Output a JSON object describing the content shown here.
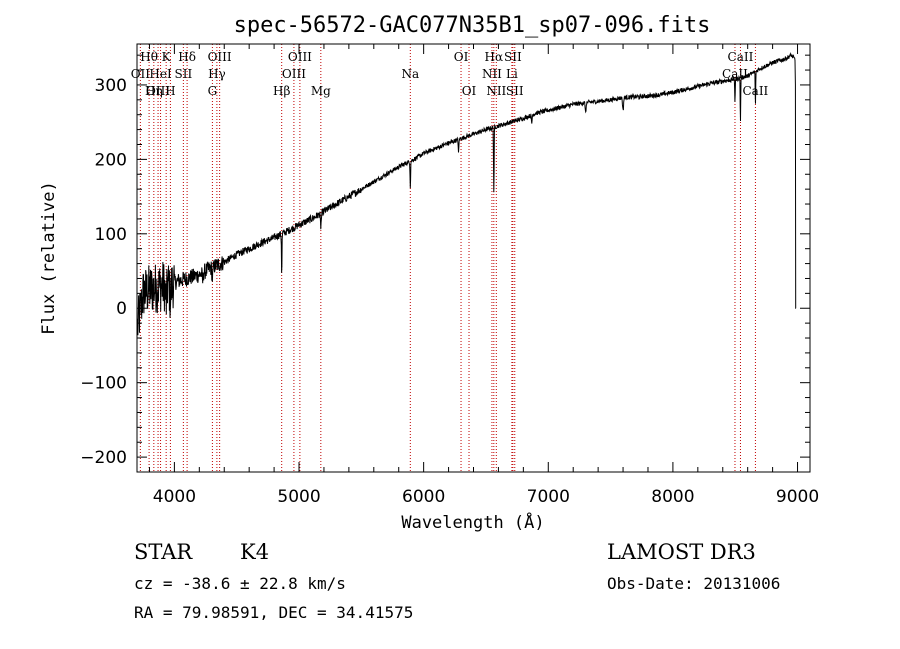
{
  "chart_data": {
    "type": "line",
    "title": "spec-56572-GAC077N35B1_sp07-096.fits",
    "xlabel": "Wavelength (Å)",
    "ylabel": "Flux (relative)",
    "xlim": [
      3700,
      9100
    ],
    "ylim": [
      -220,
      355
    ],
    "xticks": [
      4000,
      5000,
      6000,
      7000,
      8000,
      9000
    ],
    "yticks": [
      -200,
      -100,
      0,
      100,
      200,
      300
    ],
    "xminor_step": 200,
    "yminor_step": 20,
    "spectral_lines": [
      {
        "label": "OII",
        "wavelength": 3727,
        "row": 2
      },
      {
        "label": "Hθ",
        "wavelength": 3797,
        "row": 1
      },
      {
        "label": "OIII",
        "wavelength": 3869,
        "row": 3
      },
      {
        "label": "HeI",
        "wavelength": 3889,
        "row": 2
      },
      {
        "label": "Hη",
        "wavelength": 3835,
        "row": 3
      },
      {
        "label": "K",
        "wavelength": 3934,
        "row": 1
      },
      {
        "label": "H",
        "wavelength": 3968,
        "row": 3
      },
      {
        "label": "SII",
        "wavelength": 4072,
        "row": 2
      },
      {
        "label": "Hδ",
        "wavelength": 4102,
        "row": 1
      },
      {
        "label": "G",
        "wavelength": 4305,
        "row": 3
      },
      {
        "label": "Hγ",
        "wavelength": 4341,
        "row": 2
      },
      {
        "label": "OIII",
        "wavelength": 4363,
        "row": 1
      },
      {
        "label": "Hβ",
        "wavelength": 4861,
        "row": 3
      },
      {
        "label": "OIII",
        "wavelength": 4959,
        "row": 2
      },
      {
        "label": "OIII",
        "wavelength": 5007,
        "row": 1
      },
      {
        "label": "Mg",
        "wavelength": 5175,
        "row": 3
      },
      {
        "label": "Na",
        "wavelength": 5893,
        "row": 2
      },
      {
        "label": "OI",
        "wavelength": 6300,
        "row": 1
      },
      {
        "label": "OI",
        "wavelength": 6364,
        "row": 3
      },
      {
        "label": "NII",
        "wavelength": 6548,
        "row": 2
      },
      {
        "label": "Hα",
        "wavelength": 6563,
        "row": 1
      },
      {
        "label": "NII",
        "wavelength": 6583,
        "row": 3
      },
      {
        "label": "Li",
        "wavelength": 6708,
        "row": 2
      },
      {
        "label": "SII",
        "wavelength": 6716,
        "row": 1
      },
      {
        "label": "SII",
        "wavelength": 6731,
        "row": 3
      },
      {
        "label": "CaII",
        "wavelength": 8498,
        "row": 2
      },
      {
        "label": "CaII",
        "wavelength": 8542,
        "row": 1
      },
      {
        "label": "CaII",
        "wavelength": 8662,
        "row": 3
      }
    ],
    "continuum": [
      [
        3700,
        -30
      ],
      [
        3750,
        20
      ],
      [
        3800,
        25
      ],
      [
        3900,
        30
      ],
      [
        4000,
        35
      ],
      [
        4100,
        40
      ],
      [
        4200,
        45
      ],
      [
        4300,
        55
      ],
      [
        4400,
        62
      ],
      [
        4500,
        72
      ],
      [
        4600,
        80
      ],
      [
        4700,
        88
      ],
      [
        4800,
        95
      ],
      [
        4900,
        103
      ],
      [
        5000,
        112
      ],
      [
        5100,
        120
      ],
      [
        5200,
        130
      ],
      [
        5300,
        140
      ],
      [
        5400,
        150
      ],
      [
        5500,
        160
      ],
      [
        5600,
        170
      ],
      [
        5700,
        180
      ],
      [
        5800,
        190
      ],
      [
        5900,
        198
      ],
      [
        6000,
        208
      ],
      [
        6100,
        215
      ],
      [
        6200,
        222
      ],
      [
        6300,
        228
      ],
      [
        6400,
        234
      ],
      [
        6500,
        240
      ],
      [
        6600,
        245
      ],
      [
        6700,
        250
      ],
      [
        6800,
        255
      ],
      [
        6900,
        262
      ],
      [
        7000,
        266
      ],
      [
        7100,
        270
      ],
      [
        7200,
        274
      ],
      [
        7300,
        276
      ],
      [
        7400,
        278
      ],
      [
        7500,
        280
      ],
      [
        7600,
        283
      ],
      [
        7700,
        284
      ],
      [
        7800,
        285
      ],
      [
        7900,
        287
      ],
      [
        8000,
        290
      ],
      [
        8100,
        294
      ],
      [
        8200,
        298
      ],
      [
        8300,
        302
      ],
      [
        8400,
        305
      ],
      [
        8500,
        308
      ],
      [
        8600,
        312
      ],
      [
        8700,
        322
      ],
      [
        8800,
        330
      ],
      [
        8900,
        335
      ],
      [
        8950,
        340
      ],
      [
        9000,
        330
      ]
    ],
    "absorption": [
      {
        "wavelength": 3934,
        "depth": 25,
        "width": 8
      },
      {
        "wavelength": 3968,
        "depth": 20,
        "width": 8
      },
      {
        "wavelength": 4227,
        "depth": 12,
        "width": 5
      },
      {
        "wavelength": 4305,
        "depth": 15,
        "width": 6
      },
      {
        "wavelength": 4861,
        "depth": 55,
        "width": 3
      },
      {
        "wavelength": 5175,
        "depth": 18,
        "width": 5
      },
      {
        "wavelength": 5893,
        "depth": 35,
        "width": 3
      },
      {
        "wavelength": 6280,
        "depth": 20,
        "width": 3
      },
      {
        "wavelength": 6563,
        "depth": 90,
        "width": 3
      },
      {
        "wavelength": 6867,
        "depth": 12,
        "width": 4
      },
      {
        "wavelength": 7300,
        "depth": 15,
        "width": 4
      },
      {
        "wavelength": 7600,
        "depth": 18,
        "width": 5
      },
      {
        "wavelength": 8498,
        "depth": 30,
        "width": 3
      },
      {
        "wavelength": 8542,
        "depth": 60,
        "width": 3
      },
      {
        "wavelength": 8662,
        "depth": 45,
        "width": 3
      }
    ],
    "terminal_drop": {
      "wavelength": 8985,
      "value": 0
    }
  },
  "footer": {
    "object_class": "STAR",
    "subclass": "K4",
    "survey": "LAMOST DR3",
    "redshift": "cz = -38.6 ± 22.8 km/s",
    "obs_date": "Obs-Date: 20131006",
    "coords": "RA =  79.98591, DEC =  34.41575"
  },
  "colors": {
    "spectrum": "#000000",
    "line_marker": "#c00000",
    "axis": "#000000"
  }
}
